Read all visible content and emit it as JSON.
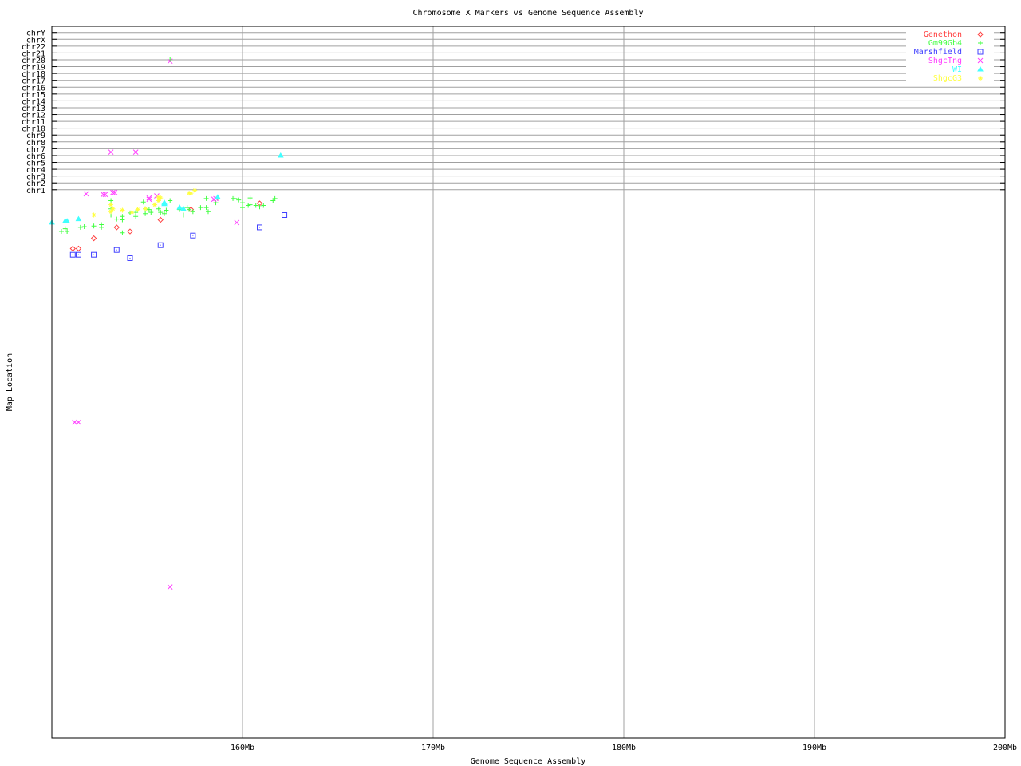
{
  "chart_data": {
    "type": "scatter",
    "title": "Chromosome X Markers vs Genome Sequence Assembly",
    "xlabel": "Genome Sequence Assembly",
    "ylabel": "Map Location",
    "xlim": [
      150,
      200
    ],
    "ylim": [
      -79.2,
      24.9
    ],
    "grid": true,
    "legend_position": "top-right",
    "x_ticks": [
      {
        "value": 160,
        "label": "160Mb"
      },
      {
        "value": 170,
        "label": "170Mb"
      },
      {
        "value": 180,
        "label": "180Mb"
      },
      {
        "value": 190,
        "label": "190Mb"
      },
      {
        "value": 200,
        "label": "200Mb"
      }
    ],
    "y_ticks": [
      {
        "value": 1,
        "label": "chr1"
      },
      {
        "value": 2,
        "label": "chr2"
      },
      {
        "value": 3,
        "label": "chr3"
      },
      {
        "value": 4,
        "label": "chr4"
      },
      {
        "value": 5,
        "label": "chr5"
      },
      {
        "value": 6,
        "label": "chr6"
      },
      {
        "value": 7,
        "label": "chr7"
      },
      {
        "value": 8,
        "label": "chr8"
      },
      {
        "value": 9,
        "label": "chr9"
      },
      {
        "value": 10,
        "label": "chr10"
      },
      {
        "value": 11,
        "label": "chr11"
      },
      {
        "value": 12,
        "label": "chr12"
      },
      {
        "value": 13,
        "label": "chr13"
      },
      {
        "value": 14,
        "label": "chr14"
      },
      {
        "value": 15,
        "label": "chr15"
      },
      {
        "value": 16,
        "label": "chr16"
      },
      {
        "value": 17,
        "label": "chr17"
      },
      {
        "value": 18,
        "label": "chr18"
      },
      {
        "value": 19,
        "label": "chr19"
      },
      {
        "value": 20,
        "label": "chr20"
      },
      {
        "value": 21,
        "label": "chr21"
      },
      {
        "value": 22,
        "label": "chr22"
      },
      {
        "value": 23,
        "label": "chrX"
      },
      {
        "value": 24,
        "label": "chrY"
      }
    ],
    "series": [
      {
        "name": "Genethon",
        "color": "#ff4040",
        "marker": "diamond",
        "points": [
          [
            151.1,
            -7.6
          ],
          [
            151.4,
            -7.6
          ],
          [
            153.4,
            -4.5
          ],
          [
            152.2,
            -6.1
          ],
          [
            154.1,
            -5.1
          ],
          [
            155.7,
            -3.4
          ],
          [
            160.9,
            -1.0
          ],
          [
            157.3,
            -1.9
          ]
        ]
      },
      {
        "name": "Gm99Gb4",
        "color": "#40ff40",
        "marker": "plus",
        "points": [
          [
            150.5,
            -5.1
          ],
          [
            150.7,
            -4.7
          ],
          [
            150.8,
            -5.1
          ],
          [
            151.5,
            -4.5
          ],
          [
            151.7,
            -4.4
          ],
          [
            152.2,
            -4.3
          ],
          [
            152.6,
            -4.1
          ],
          [
            152.6,
            -4.5
          ],
          [
            153.1,
            -0.6
          ],
          [
            153.1,
            -1.8
          ],
          [
            153.1,
            -2.7
          ],
          [
            153.4,
            -3.3
          ],
          [
            153.7,
            -2.9
          ],
          [
            153.7,
            -3.4
          ],
          [
            153.7,
            -5.3
          ],
          [
            154.1,
            -2.4
          ],
          [
            154.4,
            -2.3
          ],
          [
            154.4,
            -2.9
          ],
          [
            154.8,
            -0.8
          ],
          [
            154.9,
            -1.8
          ],
          [
            154.9,
            -2.5
          ],
          [
            155.1,
            -1.9
          ],
          [
            155.2,
            -2.3
          ],
          [
            155.6,
            -1.8
          ],
          [
            155.7,
            -2.3
          ],
          [
            155.9,
            -2.5
          ],
          [
            156.0,
            -2.0
          ],
          [
            156.2,
            -0.6
          ],
          [
            156.9,
            -2.7
          ],
          [
            157.2,
            -1.9
          ],
          [
            157.4,
            -2.2
          ],
          [
            157.8,
            -1.6
          ],
          [
            158.1,
            -0.3
          ],
          [
            158.1,
            -1.6
          ],
          [
            158.2,
            -2.2
          ],
          [
            158.6,
            -0.9
          ],
          [
            158.7,
            -0.3
          ],
          [
            159.5,
            -0.3
          ],
          [
            159.6,
            -0.3
          ],
          [
            159.8,
            -0.5
          ],
          [
            160.0,
            -0.9
          ],
          [
            160.0,
            -1.6
          ],
          [
            160.3,
            -1.3
          ],
          [
            160.4,
            -0.2
          ],
          [
            160.4,
            -1.2
          ],
          [
            160.7,
            -1.3
          ],
          [
            160.9,
            -1.5
          ],
          [
            161.1,
            -1.3
          ],
          [
            161.6,
            -0.6
          ],
          [
            161.7,
            -0.3
          ],
          [
            156.2,
            20.0
          ],
          [
            156.7,
            -1.9
          ],
          [
            157.1,
            -1.6
          ]
        ]
      },
      {
        "name": "Marshfield",
        "color": "#4040ff",
        "marker": "square",
        "points": [
          [
            151.1,
            -8.5
          ],
          [
            151.4,
            -8.5
          ],
          [
            152.2,
            -8.5
          ],
          [
            153.4,
            -7.8
          ],
          [
            154.1,
            -9.0
          ],
          [
            155.7,
            -7.1
          ],
          [
            157.4,
            -5.7
          ],
          [
            160.9,
            -4.5
          ],
          [
            162.2,
            -2.7
          ]
        ]
      },
      {
        "name": "ShgcTng",
        "color": "#ff40ff",
        "marker": "cross",
        "points": [
          [
            151.8,
            0.4
          ],
          [
            152.7,
            0.3
          ],
          [
            152.8,
            0.3
          ],
          [
            153.2,
            0.6
          ],
          [
            153.3,
            0.6
          ],
          [
            155.1,
            -0.2
          ],
          [
            155.1,
            -0.4
          ],
          [
            155.5,
            0.1
          ],
          [
            158.5,
            -0.4
          ],
          [
            158.6,
            -0.3
          ],
          [
            159.7,
            -3.8
          ],
          [
            153.1,
            6.5
          ],
          [
            154.4,
            6.5
          ],
          [
            156.2,
            19.8
          ],
          [
            151.2,
            -33.0
          ],
          [
            151.4,
            -33.0
          ],
          [
            156.2,
            -57.1
          ]
        ]
      },
      {
        "name": "WI",
        "color": "#40ffff",
        "marker": "triangle",
        "points": [
          [
            150.0,
            -3.8
          ],
          [
            150.7,
            -3.6
          ],
          [
            150.8,
            -3.6
          ],
          [
            151.4,
            -3.3
          ],
          [
            155.9,
            -0.9
          ],
          [
            156.7,
            -1.6
          ],
          [
            156.9,
            -1.8
          ],
          [
            155.9,
            -1.1
          ],
          [
            158.7,
            -0.1
          ],
          [
            162.0,
            6.0
          ]
        ]
      },
      {
        "name": "ShgcG3",
        "color": "#ffff40",
        "marker": "star",
        "points": [
          [
            152.2,
            -2.7
          ],
          [
            153.1,
            -1.2
          ],
          [
            153.1,
            -2.2
          ],
          [
            153.2,
            -1.8
          ],
          [
            153.7,
            -2.0
          ],
          [
            154.2,
            -2.3
          ],
          [
            154.5,
            -1.9
          ],
          [
            154.9,
            -1.8
          ],
          [
            155.6,
            -0.1
          ],
          [
            155.6,
            -0.6
          ],
          [
            157.2,
            0.5
          ],
          [
            157.3,
            0.5
          ],
          [
            157.5,
            0.9
          ],
          [
            155.4,
            -1.2
          ],
          [
            155.7,
            -0.2
          ]
        ]
      }
    ]
  }
}
